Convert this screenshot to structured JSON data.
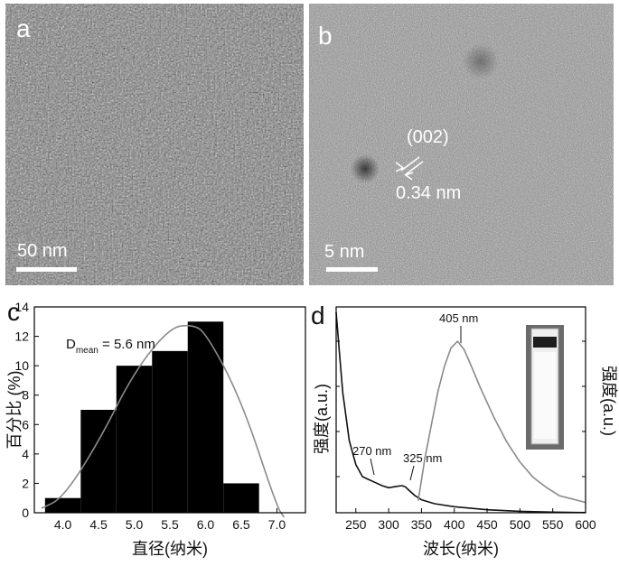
{
  "panels": {
    "a": {
      "letter": "a",
      "scalebar_label": "50 nm"
    },
    "b": {
      "letter": "b",
      "scalebar_label": "5 nm",
      "plane_label": "(002)",
      "spacing_label": "0.34 nm"
    },
    "c": {
      "letter": "c"
    },
    "d": {
      "letter": "d"
    }
  },
  "chart_data": [
    {
      "type": "bar",
      "panel": "c",
      "categories": [
        4.0,
        4.5,
        5.0,
        5.5,
        6.0,
        6.5
      ],
      "values": [
        1,
        7,
        10,
        11,
        13,
        2
      ],
      "fit_curve": {
        "name": "",
        "x": [
          3.7,
          4.0,
          4.5,
          5.0,
          5.5,
          5.8,
          6.0,
          6.5,
          7.0,
          7.1
        ],
        "y": [
          0.3,
          1.0,
          4.8,
          9.6,
          12.6,
          12.8,
          12.3,
          7.7,
          0.4,
          -0.3
        ]
      },
      "annotation_main": "D",
      "annotation_sub": "mean",
      "annotation_rest": " = 5.6 nm",
      "xlabel": "直径(纳米)",
      "ylabel": "百分比 (%)",
      "xlim": [
        3.6,
        7.4
      ],
      "ylim": [
        0,
        14
      ],
      "xticks": [
        "4.0",
        "4.5",
        "5.0",
        "5.5",
        "6.0",
        "6.5",
        "7.0"
      ],
      "yticks": [
        "0",
        "2",
        "4",
        "6",
        "8",
        "10",
        "12",
        "14"
      ],
      "colors": {
        "bars": "#000000",
        "curve": "#8a8a8a"
      }
    },
    {
      "type": "line",
      "panel": "d",
      "series": [
        {
          "name": "",
          "axis": "left",
          "x": [
            220,
            225,
            230,
            240,
            250,
            260,
            270,
            280,
            290,
            300,
            310,
            320,
            325,
            330,
            340,
            350,
            370,
            400,
            450,
            500,
            550,
            600
          ],
          "y": [
            1.0,
            0.8,
            0.6,
            0.36,
            0.24,
            0.18,
            0.165,
            0.15,
            0.135,
            0.125,
            0.13,
            0.135,
            0.13,
            0.115,
            0.085,
            0.065,
            0.045,
            0.03,
            0.015,
            0.007,
            0.003,
            0.001
          ]
        },
        {
          "name": "",
          "axis": "right",
          "x": [
            345,
            355,
            365,
            375,
            385,
            395,
            405,
            415,
            425,
            440,
            460,
            480,
            500,
            520,
            540,
            560,
            580,
            600
          ],
          "y": [
            0.05,
            0.3,
            0.5,
            0.7,
            0.85,
            0.96,
            1.0,
            0.95,
            0.86,
            0.72,
            0.55,
            0.4,
            0.28,
            0.19,
            0.13,
            0.08,
            0.06,
            0.04
          ]
        }
      ],
      "annotations": [
        "270 nm",
        "325 nm",
        "405 nm"
      ],
      "xlabel": "波长(纳米)",
      "ylabel_left": "强度(a.u.)",
      "ylabel_right": "强度(a.u.)",
      "xlim": [
        220,
        600
      ],
      "xticks": [
        "250",
        "300",
        "350",
        "400",
        "450",
        "500",
        "550",
        "600"
      ],
      "colors": {
        "absorption": "#111111",
        "emission": "#8a8a8a"
      },
      "inset": "cuvette-photo"
    }
  ]
}
